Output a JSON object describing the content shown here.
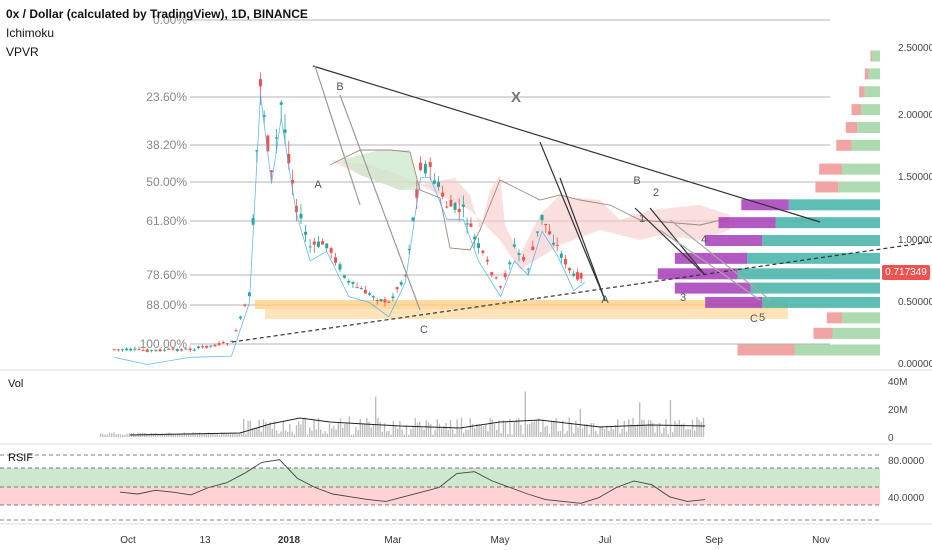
{
  "header": {
    "title": "0x / Dollar (calculated by TradingView), 1D, BINANCE",
    "indicators": [
      "Ichimoku",
      "VPVR"
    ]
  },
  "price_tag": "0.717349",
  "colors": {
    "up": "#26a69a",
    "down": "#ef5350",
    "cloud_red": "#f7c9c9",
    "cloud_green": "#c9e7c9",
    "support_zone": "#ffcc80",
    "vp_purple": "#ab47bc",
    "vp_teal": "#4db6ac",
    "vp_red": "#ef9a9a",
    "vp_green": "#a5d6a7",
    "rsi_green": "#c8e6c9",
    "rsi_red": "#ffcdd2"
  },
  "chart_data": [
    {
      "type": "candlestick",
      "title": "0x / Dollar (calculated by TradingView), 1D, BINANCE",
      "ylim": [
        0.0,
        2.75
      ],
      "y_ticks": [
        "0.000000",
        "0.500000",
        "1.000000",
        "1.500000",
        "2.000000",
        "2.500000"
      ],
      "x_ticks": [
        "Oct",
        "13",
        "2018",
        "Mar",
        "May",
        "Jul",
        "Sep",
        "Nov"
      ],
      "fib_levels": [
        "0.00%",
        "23.60%",
        "38.20%",
        "50.00%",
        "61.80%",
        "78.60%",
        "88.00%",
        "100.00%"
      ],
      "annotations": [
        "A",
        "B",
        "C",
        "X",
        "A",
        "B",
        "1",
        "2",
        "3",
        "4",
        "5",
        "C"
      ],
      "price_points": [
        {
          "d": "Sep 20",
          "p": 0.09
        },
        {
          "d": "Oct 15",
          "p": 0.08
        },
        {
          "d": "Nov 15",
          "p": 0.09
        },
        {
          "d": "Dec 15",
          "p": 0.15
        },
        {
          "d": "Dec 28",
          "p": 0.55
        },
        {
          "d": "Jan 5",
          "p": 2.35
        },
        {
          "d": "Jan 13",
          "p": 1.55
        },
        {
          "d": "Jan 20",
          "p": 2.15
        },
        {
          "d": "Jan 31",
          "p": 1.3
        },
        {
          "d": "Feb 10",
          "p": 0.95
        },
        {
          "d": "Feb 22",
          "p": 0.98
        },
        {
          "d": "Mar 10",
          "p": 0.65
        },
        {
          "d": "Mar 25",
          "p": 0.55
        },
        {
          "d": "Apr 8",
          "p": 0.48
        },
        {
          "d": "Apr 20",
          "p": 0.72
        },
        {
          "d": "May 1",
          "p": 1.65
        },
        {
          "d": "May 8",
          "p": 1.6
        },
        {
          "d": "May 20",
          "p": 1.3
        },
        {
          "d": "Jun 1",
          "p": 1.25
        },
        {
          "d": "Jun 12",
          "p": 0.95
        },
        {
          "d": "Jun 28",
          "p": 0.6
        },
        {
          "d": "Jul 8",
          "p": 0.95
        },
        {
          "d": "Jul 18",
          "p": 0.78
        },
        {
          "d": "Jul 28",
          "p": 1.2
        },
        {
          "d": "Aug 8",
          "p": 0.95
        },
        {
          "d": "Aug 20",
          "p": 0.7
        },
        {
          "d": "Aug 28",
          "p": 0.72
        }
      ],
      "volume_profile": [
        {
          "price": 2.55,
          "up": 0.04,
          "down": 0.01
        },
        {
          "price": 2.4,
          "up": 0.06,
          "down": 0.02
        },
        {
          "price": 2.25,
          "up": 0.08,
          "down": 0.03
        },
        {
          "price": 2.1,
          "up": 0.1,
          "down": 0.05
        },
        {
          "price": 1.95,
          "up": 0.12,
          "down": 0.06
        },
        {
          "price": 1.8,
          "up": 0.15,
          "down": 0.08
        },
        {
          "price": 1.6,
          "up": 0.2,
          "down": 0.12
        },
        {
          "price": 1.45,
          "up": 0.22,
          "down": 0.12
        },
        {
          "price": 1.3,
          "up": 0.48,
          "down": 0.25
        },
        {
          "price": 1.15,
          "up": 0.55,
          "down": 0.3
        },
        {
          "price": 1.0,
          "up": 0.62,
          "down": 0.3
        },
        {
          "price": 0.85,
          "up": 0.7,
          "down": 0.38
        },
        {
          "price": 0.72,
          "up": 0.75,
          "down": 0.42
        },
        {
          "price": 0.6,
          "up": 0.68,
          "down": 0.4
        },
        {
          "price": 0.48,
          "up": 0.62,
          "down": 0.3
        },
        {
          "price": 0.35,
          "up": 0.2,
          "down": 0.08
        },
        {
          "price": 0.22,
          "up": 0.25,
          "down": 0.1
        },
        {
          "price": 0.08,
          "up": 0.45,
          "down": 0.3
        }
      ]
    },
    {
      "type": "bar",
      "title": "Vol",
      "y_ticks": [
        "0",
        "20M",
        "40M"
      ]
    },
    {
      "type": "line",
      "title": "RSIF",
      "ylim": [
        20,
        90
      ],
      "y_ticks": [
        "40.0000",
        "80.0000"
      ],
      "values": [
        50,
        48,
        52,
        50,
        47,
        55,
        60,
        70,
        82,
        85,
        65,
        55,
        48,
        45,
        42,
        40,
        45,
        50,
        55,
        70,
        72,
        62,
        55,
        48,
        42,
        40,
        38,
        44,
        55,
        62,
        58,
        45,
        40,
        42
      ]
    }
  ]
}
